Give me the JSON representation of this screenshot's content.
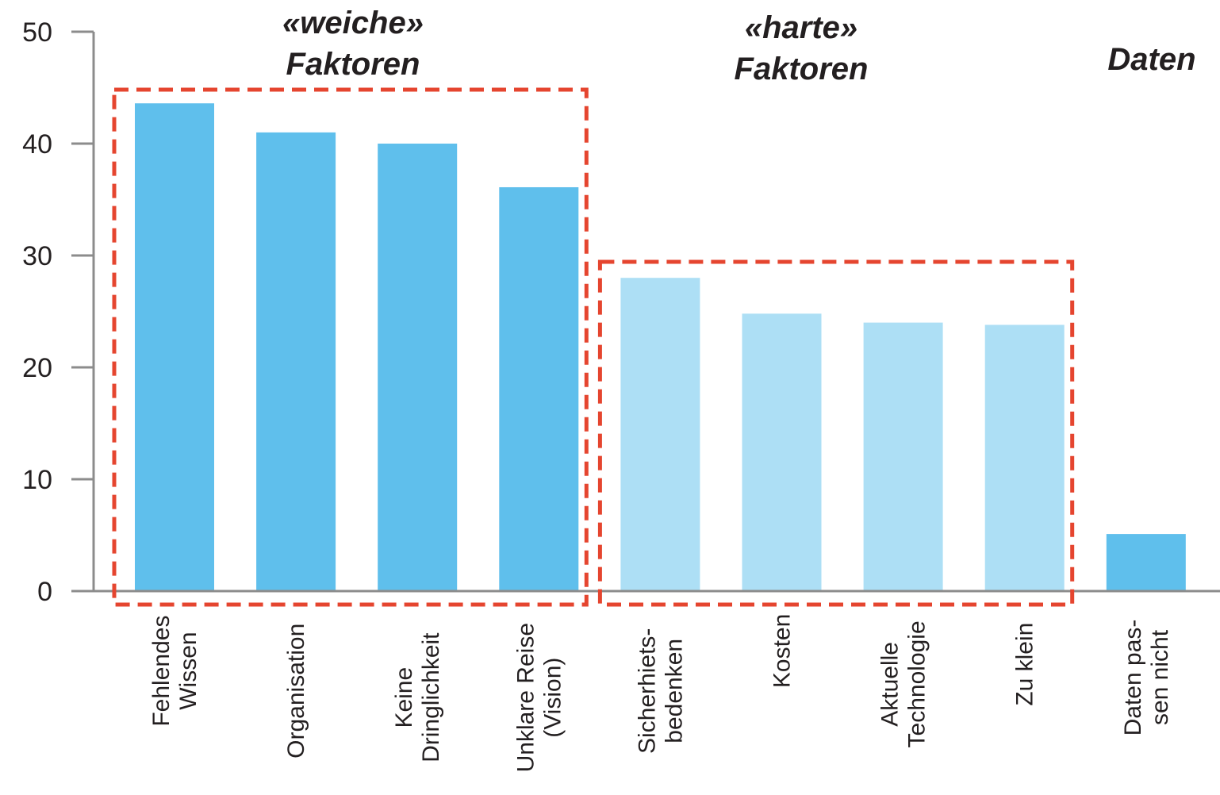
{
  "chart_data": {
    "type": "bar",
    "categories": [
      [
        "Fehlendes",
        "Wissen"
      ],
      [
        "Organisation"
      ],
      [
        "Keine",
        "Dringlichkeit"
      ],
      [
        "Unklare Reise",
        "(Vision)"
      ],
      [
        "Sicherhiets-",
        "bedenken"
      ],
      [
        "Kosten"
      ],
      [
        "Aktuelle",
        "Technologie"
      ],
      [
        "Zu klein"
      ],
      [
        "Daten pas-",
        "sen nicht"
      ]
    ],
    "values": [
      43.6,
      41.0,
      40.0,
      36.1,
      28.0,
      24.8,
      24.0,
      23.8,
      5.1
    ],
    "groups": [
      {
        "name_lines": [
          "«weiche»",
          "Faktoren"
        ],
        "first": 0,
        "last": 3,
        "color": "#5fbfec"
      },
      {
        "name_lines": [
          "«harte»",
          "Faktoren"
        ],
        "first": 4,
        "last": 7,
        "color": "#addff5"
      },
      {
        "name_lines": [
          "Daten"
        ],
        "first": 8,
        "last": 8,
        "color": "#5fbfec"
      }
    ],
    "ylim": [
      0,
      50
    ],
    "yticks": [
      0,
      10,
      20,
      30,
      40,
      50
    ],
    "highlight_color": "#e5452f",
    "axis_color": "#8c8c8c",
    "xlabel": "",
    "ylabel": ""
  }
}
